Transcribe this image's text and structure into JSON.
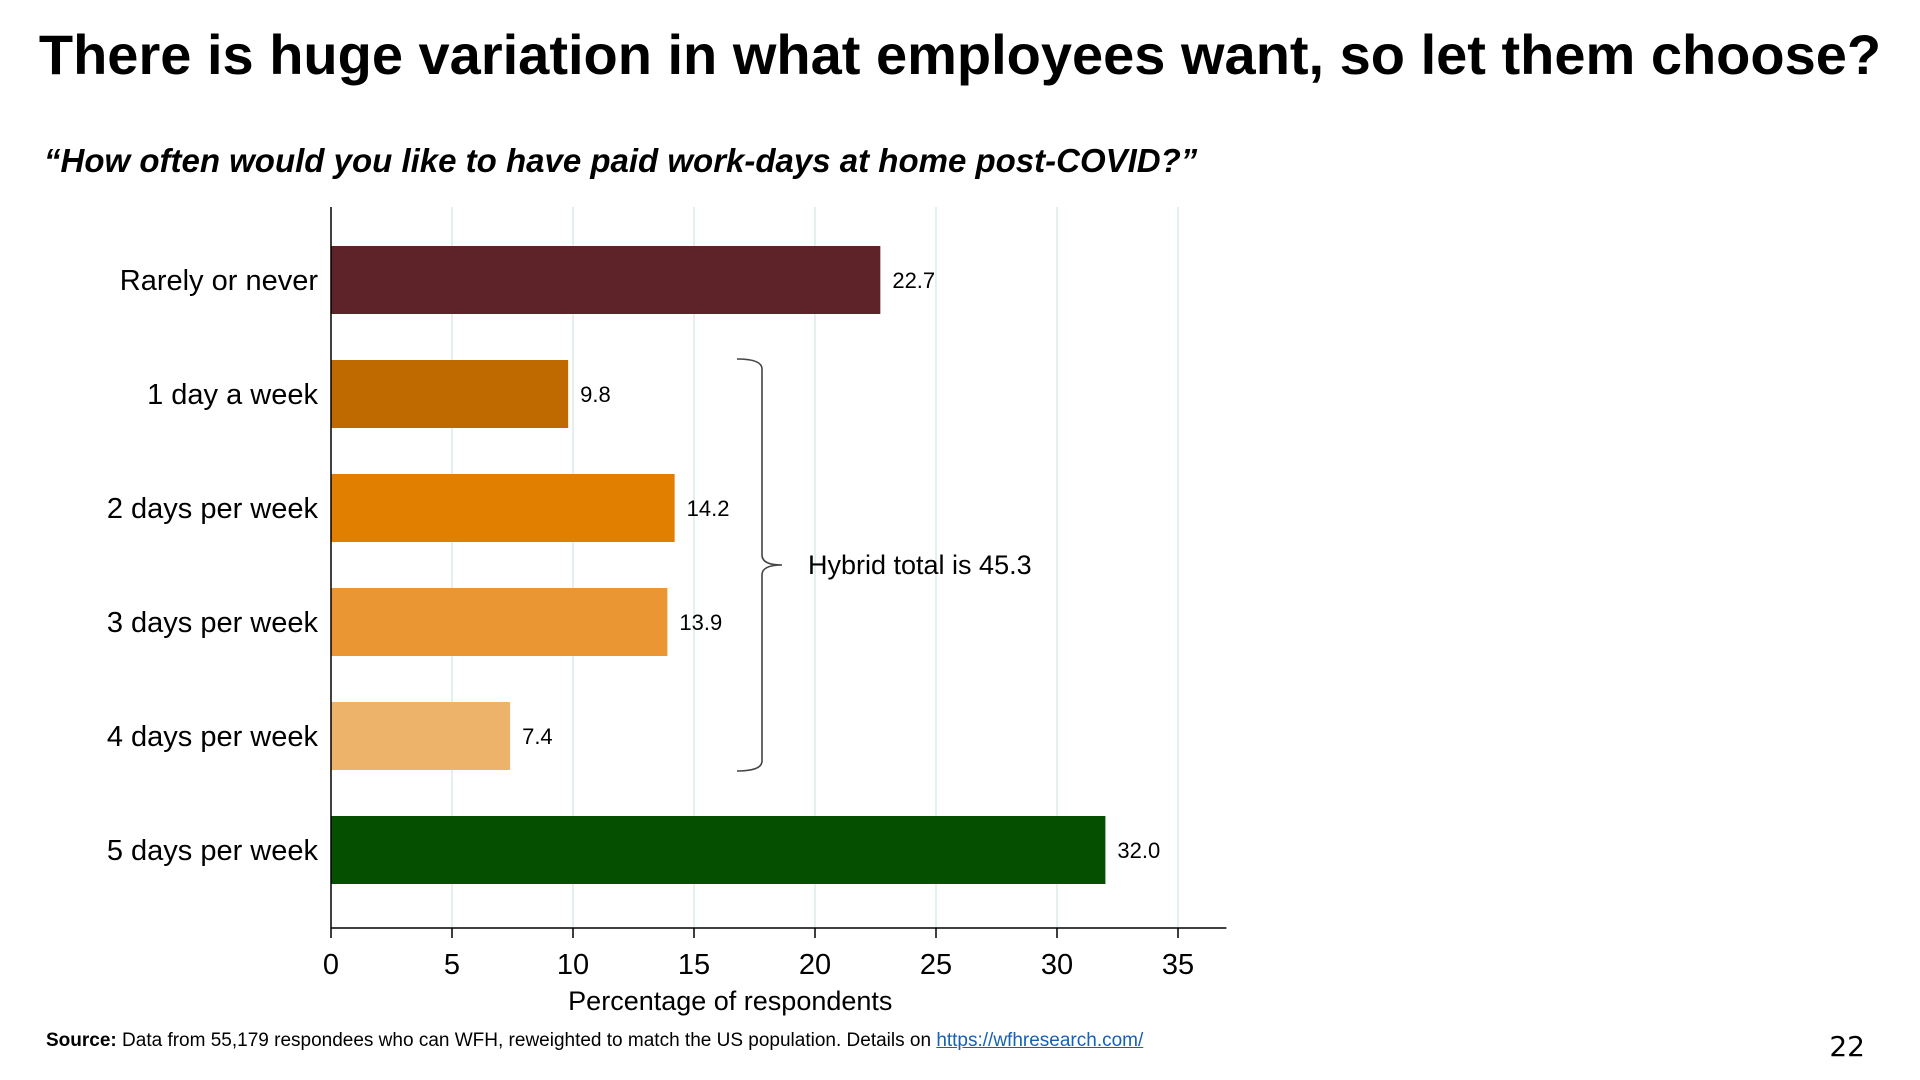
{
  "slide": {
    "title": "There is huge variation in what employees want, so let them choose?",
    "subtitle": "“How often would you like to have paid work-days at home post-COVID?”",
    "page_number": "22"
  },
  "footer": {
    "source_label": "Source:",
    "source_text": " Data from 55,179 respondees who can WFH, reweighted to match the US population. Details on ",
    "link_text": "https://wfhresearch.com/"
  },
  "chart_data": {
    "type": "bar",
    "orientation": "horizontal",
    "categories": [
      "Rarely or never",
      "1 day a week",
      "2 days per week",
      "3 days per week",
      "4 days per week",
      "5 days per week"
    ],
    "values": [
      22.7,
      9.8,
      14.2,
      13.9,
      7.4,
      32.0
    ],
    "value_labels": [
      "22.7",
      "9.8",
      "14.2",
      "13.9",
      "7.4",
      "32.0"
    ],
    "colors": [
      "#5e2329",
      "#bf6a00",
      "#e07f00",
      "#ea9733",
      "#edb36b",
      "#044f00"
    ],
    "xlabel": "Percentage of respondents",
    "ylabel": "",
    "xlim": [
      0,
      37
    ],
    "xticks": [
      0,
      5,
      10,
      15,
      20,
      25,
      30,
      35
    ],
    "grid": true,
    "grid_color": "#e4efef",
    "annotation": {
      "text": "Hybrid total is 45.3",
      "bracket_categories": [
        "1 day a week",
        "2 days per week",
        "3 days per week",
        "4 days per week"
      ]
    }
  }
}
